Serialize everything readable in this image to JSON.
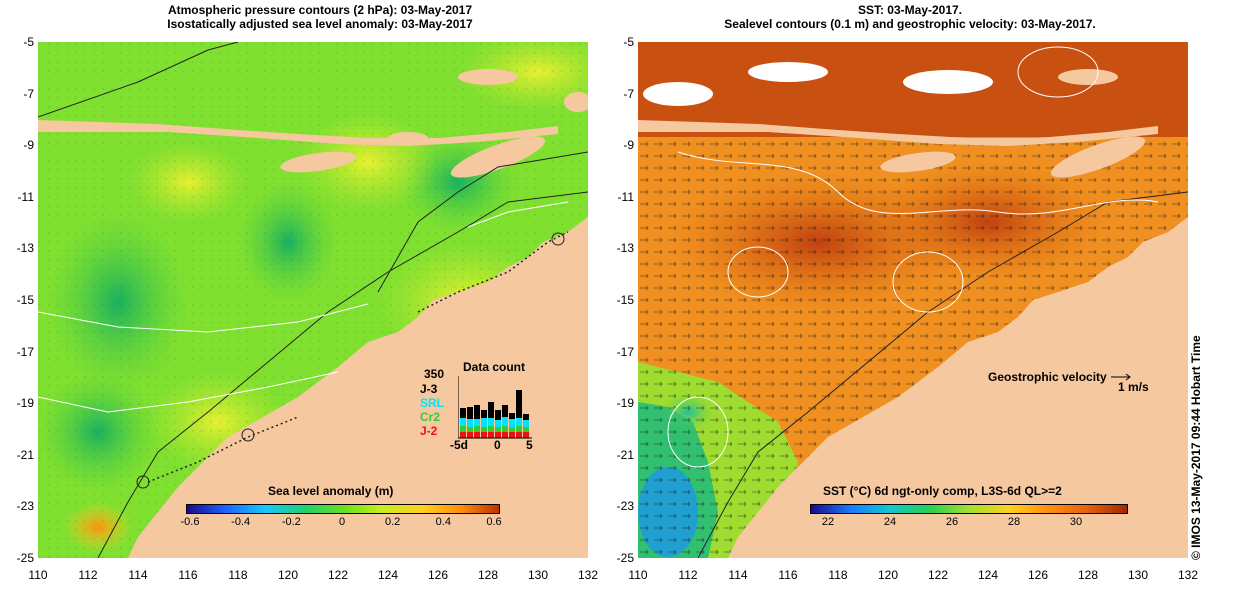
{
  "left_panel": {
    "title_line1": "Atmospheric pressure contours (2 hPa): 03-May-2017",
    "title_line2": "Isostatically adjusted sea level anomaly: 03-May-2017",
    "colorbar": {
      "title": "Sea level anomaly (m)",
      "labels": [
        "-0.6",
        "-0.4",
        "-0.2",
        "0",
        "0.2",
        "0.4",
        "0.6"
      ]
    },
    "data_count": {
      "title": "Data count",
      "max_label": "350",
      "missions": [
        {
          "name": "J-3",
          "color": "#000000"
        },
        {
          "name": "SRL",
          "color": "#00e5ff"
        },
        {
          "name": "Cr2",
          "color": "#33cc33"
        },
        {
          "name": "J-2",
          "color": "#ee1111"
        }
      ],
      "x_labels": [
        "-5d",
        "0",
        "5"
      ]
    }
  },
  "right_panel": {
    "title_line1": "SST: 03-May-2017.",
    "title_line2": "Sealevel contours (0.1 m) and geostrophic velocity: 03-May-2017.",
    "velocity_label": "Geostrophic velocity",
    "velocity_scale": "1 m/s",
    "colorbar": {
      "title": "SST (°C) 6d ngt-only comp, L3S-6d QL>=2",
      "labels": [
        "22",
        "24",
        "26",
        "28",
        "30"
      ]
    }
  },
  "axes": {
    "y_labels": [
      "-5",
      "-7",
      "-9",
      "-11",
      "-13",
      "-15",
      "-17",
      "-19",
      "-21",
      "-23",
      "-25"
    ],
    "x_labels": [
      "110",
      "112",
      "114",
      "116",
      "118",
      "120",
      "122",
      "124",
      "126",
      "128",
      "130",
      "132"
    ]
  },
  "stamp": "© IMOS 13-May-2017 09:44 Hobart Time",
  "colors": {
    "land": "#f5c8a0",
    "sla_ramp": [
      "#1a0a8c",
      "#1e64ff",
      "#18c8ff",
      "#20d070",
      "#66e020",
      "#c8ee20",
      "#ffd020",
      "#ff9010",
      "#c03000"
    ],
    "sst_ramp": [
      "#1a0a8c",
      "#1a7aff",
      "#10c8d0",
      "#28d050",
      "#a0e030",
      "#ffd020",
      "#ff9010",
      "#e86010",
      "#a02800"
    ]
  }
}
